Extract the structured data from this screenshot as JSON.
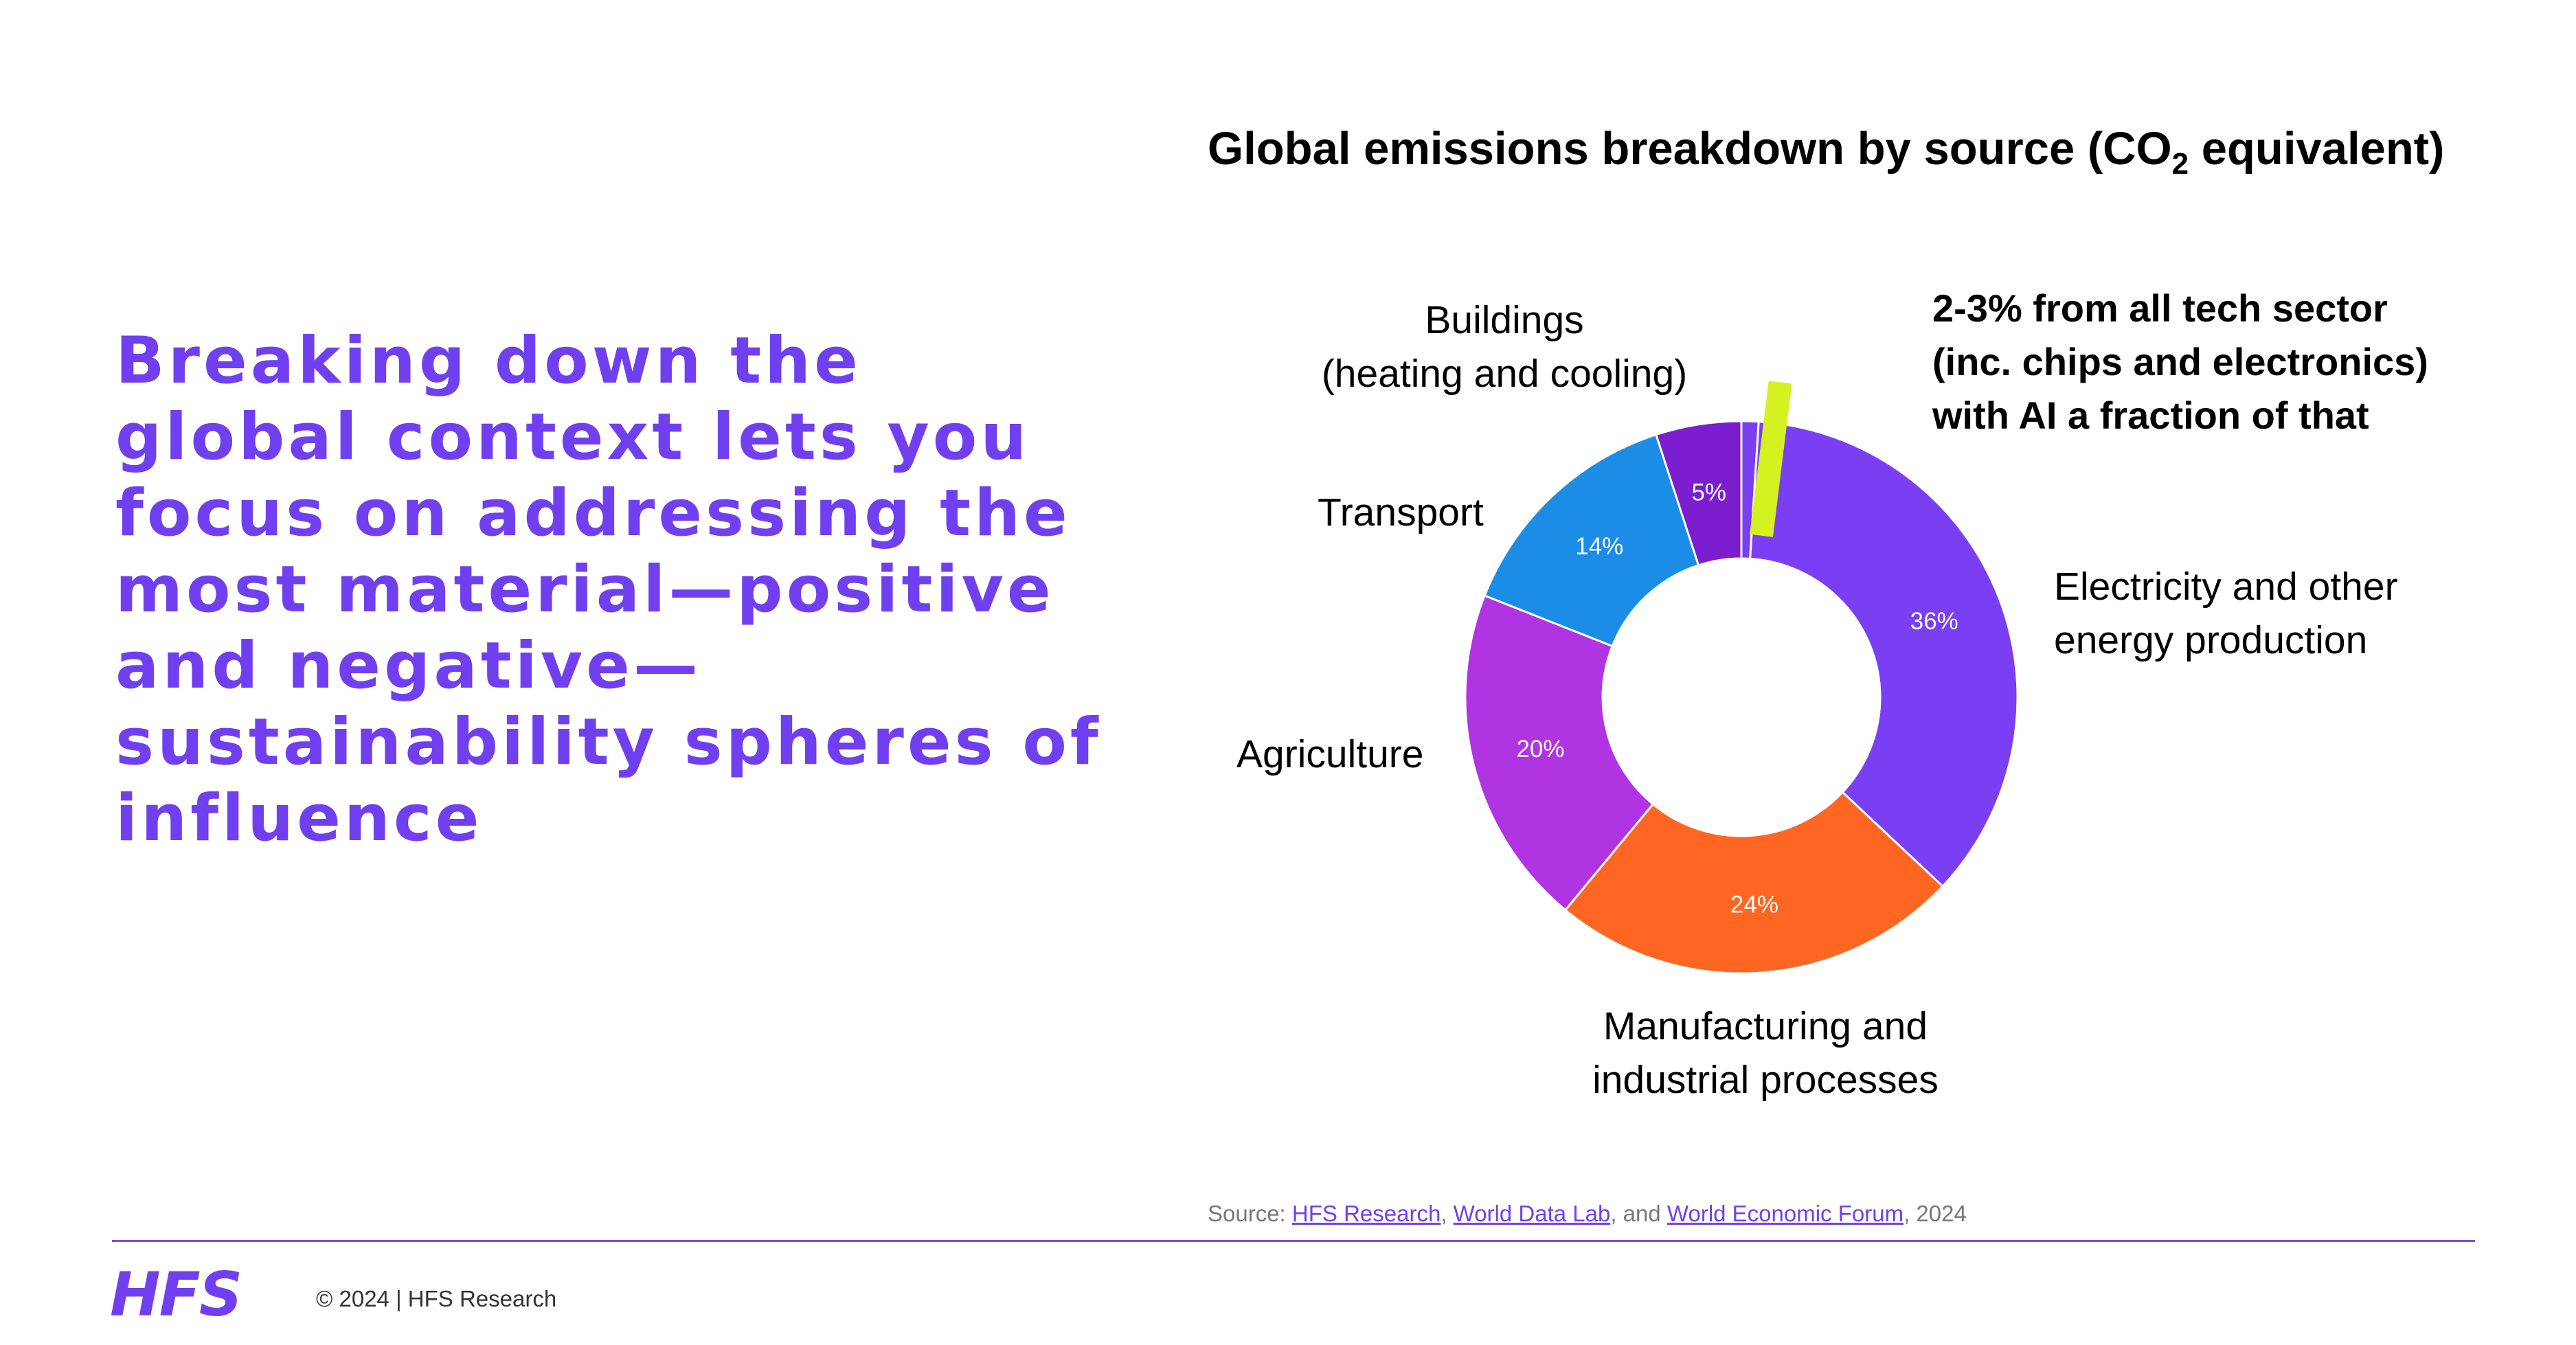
{
  "headline": "Breaking down the global context lets you focus on addressing the most material—positive and negative—sustainability spheres of influence",
  "chart_data": {
    "type": "pie",
    "title_main": "Global emissions breakdown by source (CO",
    "title_sub": "2",
    "title_end": " equivalent)",
    "slices": [
      {
        "category_line1": "Electricity and other",
        "category_line2": "energy production",
        "value": 36,
        "value_label": "36%",
        "color": "#7a3ff3"
      },
      {
        "category_line1": "Manufacturing and",
        "category_line2": "industrial processes",
        "value": 24,
        "value_label": "24%",
        "color": "#ff6622"
      },
      {
        "category_line1": "Agriculture",
        "category_line2": "",
        "value": 20,
        "value_label": "20%",
        "color": "#b134e3"
      },
      {
        "category_line1": "Transport",
        "category_line2": "",
        "value": 14,
        "value_label": "14%",
        "color": "#1b8de6"
      },
      {
        "category_line1": "Buildings",
        "category_line2": "(heating and cooling)",
        "value": 5,
        "value_label": "5%",
        "color": "#7a1ed0"
      }
    ],
    "callout": {
      "lines": [
        "2-3% from all tech sector",
        "(inc. chips and electronics)",
        "with AI a fraction of that"
      ],
      "marker_color": "#d4f21f"
    }
  },
  "source": {
    "prefix": "Source: ",
    "link1": "HFS Research",
    "sep1": ", ",
    "link2": "World Data Lab",
    "sep2": ", and ",
    "link3": "World Economic Forum",
    "suffix": ", 2024"
  },
  "footer": {
    "logo": "HFS",
    "copyright": "© 2024 | HFS Research"
  },
  "colors": {
    "brand": "#7040f0",
    "rule": "#7a4af2"
  }
}
